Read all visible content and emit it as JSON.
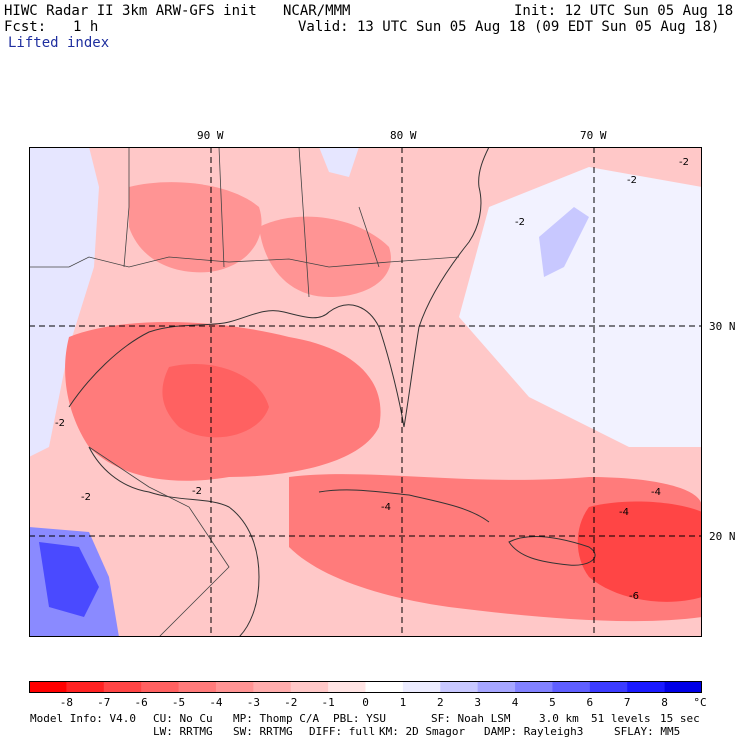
{
  "header": {
    "title": "HIWC Radar II 3km ARW-GFS init",
    "center": "NCAR/MMM",
    "init": "Init: 12 UTC Sun 05 Aug 18",
    "fcst_label": "Fcst:",
    "fcst_value": "1 h",
    "valid": "Valid: 13 UTC Sun 05 Aug 18 (09 EDT Sun 05 Aug 18)",
    "field": "Lifted index"
  },
  "map": {
    "lon_labels": [
      "90 W",
      "80 W",
      "70 W"
    ],
    "lat_labels": [
      "30 N",
      "20 N"
    ],
    "contour_labels": [
      "-2",
      "-2",
      "-2",
      "-2",
      "-2",
      "-2",
      "-4",
      "-4",
      "-4",
      "-6"
    ]
  },
  "colorbar": {
    "ticks": [
      "-8",
      "-7",
      "-6",
      "-5",
      "-4",
      "-3",
      "-2",
      "-1",
      "0",
      "1",
      "2",
      "3",
      "4",
      "5",
      "6",
      "7",
      "8"
    ],
    "unit": "°C",
    "colors": [
      "#ff0000",
      "#ff2222",
      "#ff4545",
      "#ff6161",
      "#ff7b7b",
      "#ff9494",
      "#ffadad",
      "#ffc8c8",
      "#ffe4e4",
      "#ffffff",
      "#ececff",
      "#c8c8ff",
      "#a6a6ff",
      "#8282ff",
      "#5f5fff",
      "#3c3cff",
      "#1a1aff",
      "#0000e6"
    ]
  },
  "footer": {
    "line1": [
      "Model Info: V4.0",
      "CU: No Cu",
      "MP: Thomp C/A",
      "PBL: YSU",
      "SF: Noah LSM",
      "3.0 km",
      "51 levels",
      "15 sec"
    ],
    "line2": [
      "LW: RRTMG",
      "SW: RRTMG",
      "DIFF: full",
      "KM: 2D Smagor",
      "DAMP: Rayleigh3",
      "SFLAY: MM5"
    ]
  }
}
